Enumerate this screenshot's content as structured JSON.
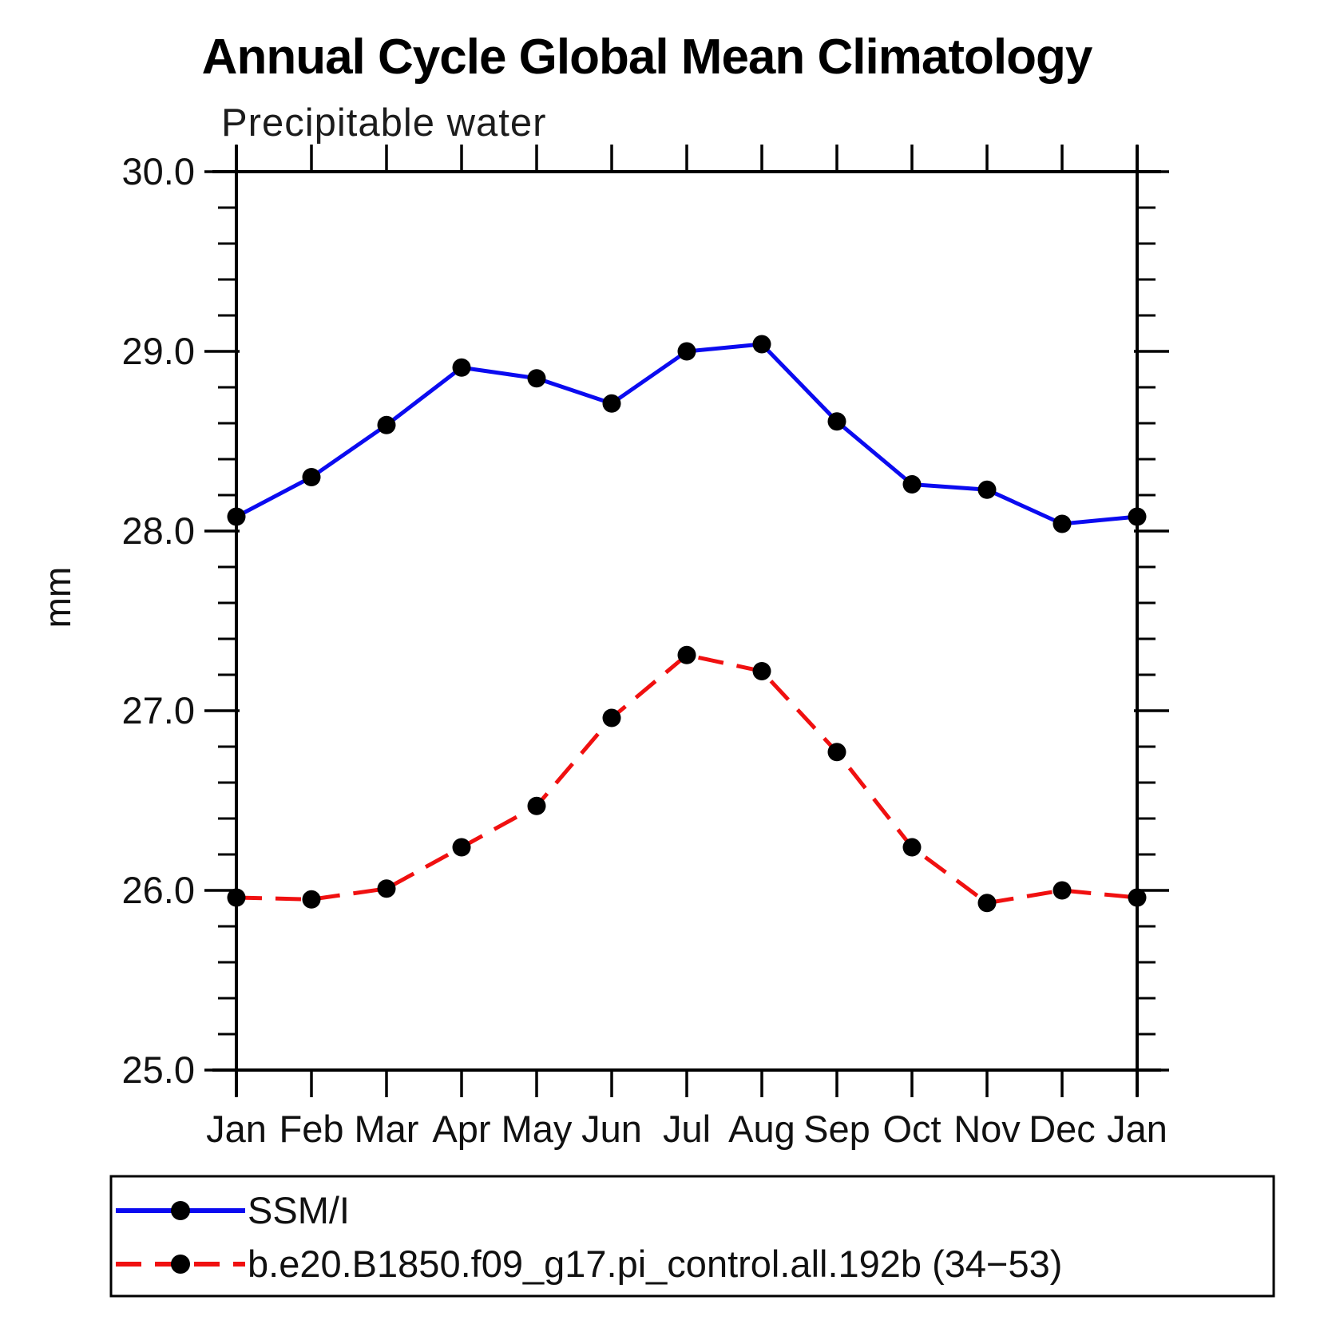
{
  "title": "Annual Cycle Global Mean Climatology",
  "subtitle": "Precipitable water",
  "y_axis": {
    "unit_label": "mm",
    "min": 25.0,
    "max": 30.0,
    "major_tick_labels": [
      "30.0",
      "29.0",
      "28.0",
      "27.0",
      "26.0",
      "25.0"
    ],
    "major_step": 1.0,
    "minor_step": 0.2
  },
  "x_axis": {
    "labels": [
      "Jan",
      "Feb",
      "Mar",
      "Apr",
      "May",
      "Jun",
      "Jul",
      "Aug",
      "Sep",
      "Oct",
      "Nov",
      "Dec",
      "Jan"
    ]
  },
  "legend": {
    "items": [
      {
        "label": "SSM/I",
        "color": "#0b0bf0",
        "line_style": "solid",
        "marker": "circle"
      },
      {
        "label": "b.e20.B1850.f09_g17.pi_control.all.192b (34−53)",
        "color": "#f01010",
        "line_style": "dashed",
        "marker": "circle"
      }
    ]
  },
  "chart_data": {
    "type": "line",
    "title": "Annual Cycle Global Mean Climatology",
    "subtitle": "Precipitable water",
    "ylabel": "mm",
    "ylim": [
      25.0,
      30.0
    ],
    "y_major_step": 1.0,
    "y_minor_step": 0.2,
    "grid": "off",
    "legend_position": "below-plot-boxed",
    "categories": [
      "Jan",
      "Feb",
      "Mar",
      "Apr",
      "May",
      "Jun",
      "Jul",
      "Aug",
      "Sep",
      "Oct",
      "Nov",
      "Dec",
      "Jan"
    ],
    "series": [
      {
        "name": "SSM/I",
        "color": "#0b0bf0",
        "line_style": "solid",
        "marker": "circle",
        "marker_color": "#000000",
        "values": [
          28.08,
          28.3,
          28.59,
          28.91,
          28.85,
          28.71,
          29.0,
          29.04,
          28.61,
          28.26,
          28.23,
          28.04,
          28.08
        ]
      },
      {
        "name": "b.e20.B1850.f09_g17.pi_control.all.192b (34−53)",
        "color": "#f01010",
        "line_style": "dashed",
        "marker": "circle",
        "marker_color": "#000000",
        "values": [
          25.96,
          25.95,
          26.01,
          26.24,
          26.47,
          26.96,
          27.31,
          27.22,
          26.77,
          26.24,
          25.93,
          26.0,
          25.96
        ]
      }
    ]
  }
}
